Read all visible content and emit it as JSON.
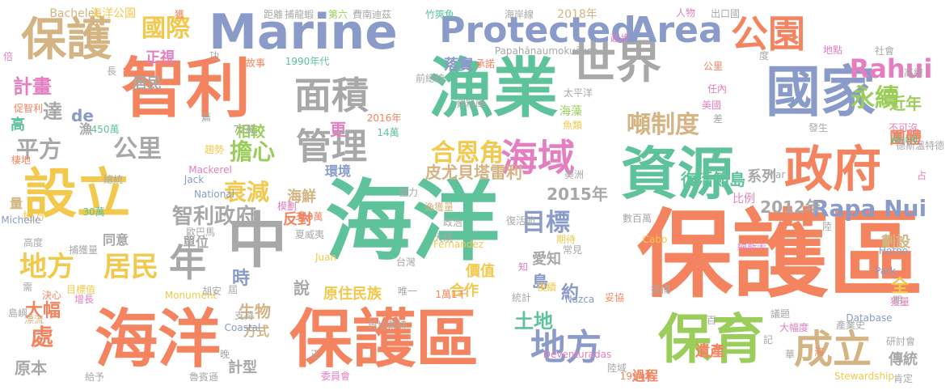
{
  "palette": {
    "orange": "#f4845f",
    "green": "#5ec29a",
    "blue": "#8a9bc9",
    "tan": "#d4b483",
    "gray": "#a8a8a8",
    "yellow": "#f2c94c",
    "pink": "#e47ec0",
    "lime": "#9acd5a"
  },
  "words": [
    {
      "text": "保護區",
      "color": "orange"
    },
    {
      "text": "海洋",
      "color": "green"
    },
    {
      "text": "海洋",
      "color": "orange"
    },
    {
      "text": "保護區",
      "color": "orange"
    },
    {
      "text": "漁業",
      "color": "green"
    },
    {
      "text": "智利",
      "color": "orange"
    },
    {
      "text": "國家",
      "color": "blue"
    },
    {
      "text": "資源",
      "color": "green"
    },
    {
      "text": "Marine",
      "color": "blue"
    },
    {
      "text": "設立",
      "color": "yellow"
    },
    {
      "text": "中",
      "color": "gray"
    },
    {
      "text": "保育",
      "color": "lime"
    },
    {
      "text": "世界",
      "color": "gray"
    },
    {
      "text": "政府",
      "color": "orange"
    },
    {
      "text": "保護",
      "color": "tan"
    },
    {
      "text": "Protected",
      "color": "blue"
    },
    {
      "text": "Area",
      "color": "blue"
    },
    {
      "text": "公園",
      "color": "orange"
    },
    {
      "text": "面積",
      "color": "gray"
    },
    {
      "text": "管理",
      "color": "gray"
    },
    {
      "text": "海域",
      "color": "pink"
    },
    {
      "text": "成立",
      "color": "tan"
    },
    {
      "text": "地方",
      "color": "blue"
    },
    {
      "text": "年",
      "color": "gray"
    },
    {
      "text": "地方",
      "color": "yellow"
    },
    {
      "text": "居民",
      "color": "yellow"
    },
    {
      "text": "國際",
      "color": "yellow"
    },
    {
      "text": "Rahui",
      "color": "pink"
    },
    {
      "text": "永續",
      "color": "lime"
    },
    {
      "text": "目標",
      "color": "blue"
    },
    {
      "text": "Rapa Nui",
      "color": "blue"
    },
    {
      "text": "噸制度",
      "color": "tan"
    },
    {
      "text": "平方",
      "color": "gray"
    },
    {
      "text": "公里",
      "color": "gray"
    },
    {
      "text": "擔心",
      "color": "lime"
    },
    {
      "text": "合恩角",
      "color": "yellow"
    },
    {
      "text": "衰減",
      "color": "yellow"
    },
    {
      "text": "計畫",
      "color": "pink"
    },
    {
      "text": "達",
      "color": "gray"
    },
    {
      "text": "智利政府",
      "color": "gray"
    },
    {
      "text": "土地",
      "color": "green"
    },
    {
      "text": "島",
      "color": "blue"
    },
    {
      "text": "約",
      "color": "blue"
    },
    {
      "text": "近年",
      "color": "lime"
    },
    {
      "text": "團體",
      "color": "orange"
    },
    {
      "text": "處",
      "color": "orange"
    },
    {
      "text": "大幅",
      "color": "orange"
    },
    {
      "text": "2015年",
      "color": "gray"
    },
    {
      "text": "2012年",
      "color": "gray"
    },
    {
      "text": "復活節島",
      "color": "green"
    },
    {
      "text": "皮尤貝塔雷利",
      "color": "tan"
    },
    {
      "text": "正視",
      "color": "pink"
    },
    {
      "text": "居民",
      "color": "gray"
    },
    {
      "text": "相較",
      "color": "lime"
    },
    {
      "text": "更",
      "color": "pink"
    },
    {
      "text": "海鮮",
      "color": "tan"
    },
    {
      "text": "反對",
      "color": "orange"
    },
    {
      "text": "系列",
      "color": "gray"
    },
    {
      "text": "比例",
      "color": "pink"
    },
    {
      "text": "時",
      "color": "blue"
    },
    {
      "text": "說",
      "color": "gray"
    },
    {
      "text": "生物",
      "color": "tan"
    },
    {
      "text": "方式",
      "color": "tan"
    },
    {
      "text": "計型",
      "color": "gray"
    },
    {
      "text": "原本",
      "color": "gray"
    },
    {
      "text": "合作",
      "color": "yellow"
    },
    {
      "text": "價值",
      "color": "yellow"
    },
    {
      "text": "愛知",
      "color": "gray"
    },
    {
      "text": "全",
      "color": "yellow"
    },
    {
      "text": "劃設",
      "color": "tan"
    },
    {
      "text": "遺產",
      "color": "orange"
    },
    {
      "text": "過程",
      "color": "orange"
    },
    {
      "text": "傳統",
      "color": "gray"
    },
    {
      "text": "de",
      "color": "blue"
    },
    {
      "text": "高",
      "color": "green"
    },
    {
      "text": "漁",
      "color": "gray"
    },
    {
      "text": "環境",
      "color": "blue"
    },
    {
      "text": "原住民族",
      "color": "yellow"
    },
    {
      "text": "落實",
      "color": "blue"
    },
    {
      "text": "海藻",
      "color": "lime"
    },
    {
      "text": "量",
      "color": "tan"
    },
    {
      "text": "地方",
      "color": "yellow"
    },
    {
      "text": "同意",
      "color": "gray"
    },
    {
      "text": "單位",
      "color": "gray"
    },
    {
      "text": "Bachelet",
      "color": "tan"
    },
    {
      "text": "海洋公園",
      "color": "yellow"
    },
    {
      "text": "獲",
      "color": "orange"
    },
    {
      "text": "距離",
      "color": "gray"
    },
    {
      "text": "捕龍蝦",
      "color": "gray"
    },
    {
      "text": "第六",
      "color": "lime"
    },
    {
      "text": "費南迪茲",
      "color": "gray"
    },
    {
      "text": "竹筴魚",
      "color": "green"
    },
    {
      "text": "海岸線",
      "color": "gray"
    },
    {
      "text": "2018年",
      "color": "tan"
    },
    {
      "text": "人物",
      "color": "pink"
    },
    {
      "text": "出口國",
      "color": "gray"
    },
    {
      "text": "Papahānaumokuākea",
      "color": "gray"
    },
    {
      "text": "1990年代",
      "color": "green"
    },
    {
      "text": "故事",
      "color": "orange"
    },
    {
      "text": "前總統",
      "color": "gray"
    },
    {
      "text": "承諾",
      "color": "orange"
    },
    {
      "text": "公里",
      "color": "orange"
    },
    {
      "text": "地點",
      "color": "pink"
    },
    {
      "text": "社會",
      "color": "gray"
    },
    {
      "text": "高緯",
      "color": "gray"
    },
    {
      "text": "任內",
      "color": "pink"
    },
    {
      "text": "美國",
      "color": "pink"
    },
    {
      "text": "促智利",
      "color": "orange"
    },
    {
      "text": "450萬",
      "color": "green"
    },
    {
      "text": "72萬",
      "color": "gray"
    },
    {
      "text": "14萬",
      "color": "green"
    },
    {
      "text": "2016年",
      "color": "orange"
    },
    {
      "text": "資料庫",
      "color": "gray"
    },
    {
      "text": "魚類",
      "color": "yellow"
    },
    {
      "text": "太平洋",
      "color": "gray"
    },
    {
      "text": "發生",
      "color": "gray"
    },
    {
      "text": "不可沒",
      "color": "pink"
    },
    {
      "text": "World",
      "color": "green"
    },
    {
      "text": "德斯溫特德",
      "color": "gray"
    },
    {
      "text": "趨勢",
      "color": "yellow"
    },
    {
      "text": "Mackerel",
      "color": "pink"
    },
    {
      "text": "棲地",
      "color": "orange"
    },
    {
      "text": "總統",
      "color": "gray"
    },
    {
      "text": "Jack",
      "color": "blue"
    },
    {
      "text": "National",
      "color": "blue"
    },
    {
      "text": "強力",
      "color": "gray"
    },
    {
      "text": "漁獲量",
      "color": "tan"
    },
    {
      "text": "美洲",
      "color": "gray"
    },
    {
      "text": "Mar",
      "color": "gray"
    },
    {
      "text": "Michelle",
      "color": "blue"
    },
    {
      "text": "30萬",
      "color": "green"
    },
    {
      "text": "模劃",
      "color": "pink"
    },
    {
      "text": "300萬",
      "color": "orange"
    },
    {
      "text": "夏威夷",
      "color": "gray"
    },
    {
      "text": "大規",
      "color": "gray"
    },
    {
      "text": "政治",
      "color": "gray"
    },
    {
      "text": "復活節",
      "color": "gray"
    },
    {
      "text": "數百萬",
      "color": "gray"
    },
    {
      "text": "Cabo",
      "color": "yellow"
    },
    {
      "text": "Horno",
      "color": "blue"
    },
    {
      "text": "高度",
      "color": "gray"
    },
    {
      "text": "捕獲量",
      "color": "gray"
    },
    {
      "text": "歐巴馬",
      "color": "gray"
    },
    {
      "text": "Fernandez",
      "color": "yellow"
    },
    {
      "text": "期待",
      "color": "yellow"
    },
    {
      "text": "常見",
      "color": "gray"
    },
    {
      "text": "納斯卡",
      "color": "pink"
    },
    {
      "text": "Park",
      "color": "blue"
    },
    {
      "text": "知",
      "color": "pink"
    },
    {
      "text": "台灣",
      "color": "gray"
    },
    {
      "text": "Juan",
      "color": "yellow"
    },
    {
      "text": "後續",
      "color": "yellow"
    },
    {
      "text": "需",
      "color": "gray"
    },
    {
      "text": "目標值",
      "color": "yellow"
    },
    {
      "text": "Monument",
      "color": "yellow"
    },
    {
      "text": "胡安",
      "color": "gray"
    },
    {
      "text": "唯一",
      "color": "gray"
    },
    {
      "text": "1萬1千",
      "color": "orange"
    },
    {
      "text": "決心",
      "color": "orange"
    },
    {
      "text": "增長",
      "color": "pink"
    },
    {
      "text": "統計",
      "color": "gray"
    },
    {
      "text": "Nazca",
      "color": "blue"
    },
    {
      "text": "妥協",
      "color": "orange"
    },
    {
      "text": "採捕",
      "color": "gray"
    },
    {
      "text": "獲量",
      "color": "pink"
    },
    {
      "text": "期",
      "color": "gray"
    },
    {
      "text": "支持",
      "color": "gray"
    },
    {
      "text": "Coastal",
      "color": "blue"
    },
    {
      "text": "巴切萊特",
      "color": "gray"
    },
    {
      "text": "議題",
      "color": "gray"
    },
    {
      "text": "大幅度",
      "color": "pink"
    },
    {
      "text": "Database",
      "color": "blue"
    },
    {
      "text": "產業史",
      "color": "gray"
    },
    {
      "text": "研討會",
      "color": "gray"
    },
    {
      "text": "島嶼",
      "color": "gray"
    },
    {
      "text": "漂流",
      "color": "tan"
    },
    {
      "text": "肯定",
      "color": "gray"
    },
    {
      "text": "陸域",
      "color": "gray"
    },
    {
      "text": "給予",
      "color": "gray"
    },
    {
      "text": "魯賓遜",
      "color": "gray"
    },
    {
      "text": "委員會",
      "color": "pink"
    },
    {
      "text": "1994年",
      "color": "orange"
    },
    {
      "text": "Stewardship",
      "color": "yellow"
    },
    {
      "text": "Deventuradas",
      "color": "pink"
    },
    {
      "text": "倍",
      "color": "pink"
    },
    {
      "text": "長",
      "color": "gray"
    },
    {
      "text": "起步",
      "color": "pink"
    },
    {
      "text": "功",
      "color": "gray"
    },
    {
      "text": "度",
      "color": "gray"
    },
    {
      "text": "篇",
      "color": "gray"
    },
    {
      "text": "差",
      "color": "gray"
    },
    {
      "text": "占",
      "color": "pink"
    },
    {
      "text": "陸",
      "color": "gray"
    },
    {
      "text": "百",
      "color": "gray"
    },
    {
      "text": "正",
      "color": "gray"
    },
    {
      "text": "晚",
      "color": "gray"
    },
    {
      "text": "華",
      "color": "gray"
    },
    {
      "text": "記",
      "color": "gray"
    },
    {
      "text": "海",
      "color": "orange"
    },
    {
      "text": "屆",
      "color": "gray"
    },
    {
      "text": "二",
      "color": "yellow"
    }
  ]
}
